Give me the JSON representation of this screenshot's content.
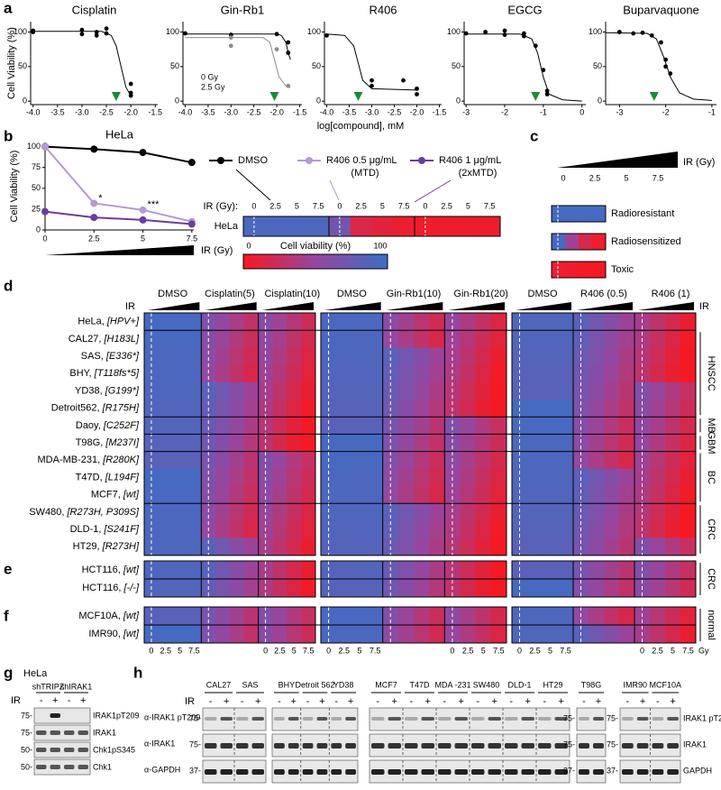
{
  "chart_data": [
    {
      "type": "scatter",
      "title": "Cisplatin",
      "xlim": [
        -4.05,
        -1.45
      ],
      "ylim": [
        -5,
        115
      ],
      "xticks": [
        {
          "value": -4,
          "label": "-4.0"
        },
        -3.5,
        {
          "value": -3,
          "label": "-3.0"
        },
        -2.5,
        {
          "value": -2,
          "label": "-2.0"
        },
        -1.5
      ],
      "yticks": [
        0,
        50,
        100
      ],
      "series": [
        {
          "color": "#000000",
          "x": [
            -4,
            -4,
            -3,
            -3,
            -2.7,
            -2.7,
            -2.5,
            -2.5,
            -2,
            -2,
            -2
          ],
          "y": [
            100,
            102,
            97,
            103,
            100,
            95,
            105,
            98,
            25,
            12,
            8
          ]
        }
      ],
      "fits": [
        {
          "color": "#000000",
          "x": [
            -4,
            -2.6,
            -2.4,
            -2.3,
            -2.2,
            -2.1,
            -2.0
          ],
          "y": [
            101,
            101,
            95,
            80,
            50,
            20,
            8
          ]
        }
      ],
      "arrow_x": -2.3
    },
    {
      "type": "scatter",
      "title": "Gin-Rb1",
      "xlim": [
        -4.05,
        -1.45
      ],
      "ylim": [
        -5,
        115
      ],
      "xticks": [
        {
          "value": -4,
          "label": "-4.0"
        },
        -3.5,
        {
          "value": -3,
          "label": "-3.0"
        },
        -2.5,
        {
          "value": -2,
          "label": "-2.0"
        },
        -1.5
      ],
      "yticks": [
        0,
        50,
        100
      ],
      "series": [
        {
          "color": "#000000",
          "x": [
            -4,
            -3,
            -2,
            -1.75,
            -1.75
          ],
          "y": [
            98,
            96,
            97,
            85,
            70
          ]
        },
        {
          "color": "#8c8c8c",
          "x": [
            -3,
            -3,
            -2,
            -1.75
          ],
          "y": [
            92,
            80,
            75,
            22
          ]
        }
      ],
      "fits": [
        {
          "color": "#000000",
          "x": [
            -4,
            -2,
            -1.9,
            -1.8,
            -1.75,
            -1.7
          ],
          "y": [
            97,
            97,
            95,
            85,
            70,
            60
          ]
        },
        {
          "color": "#8c8c8c",
          "x": [
            -4,
            -2.3,
            -2.15,
            -2.05,
            -1.95,
            -1.8,
            -1.7
          ],
          "y": [
            92,
            92,
            85,
            60,
            35,
            22,
            20
          ]
        }
      ],
      "notes": [
        "0 Gy",
        "2.5 Gy"
      ],
      "arrow_x": -2.05
    },
    {
      "type": "scatter",
      "title": "R406",
      "xlim": [
        -4.05,
        -1.45
      ],
      "ylim": [
        -5,
        115
      ],
      "xticks": [
        {
          "value": -4,
          "label": "-4.0"
        },
        -3.5,
        {
          "value": -3,
          "label": "-3.0"
        },
        -2.5,
        {
          "value": -2,
          "label": "-2.0"
        },
        -1.5
      ],
      "yticks": [
        0,
        50,
        100
      ],
      "series": [
        {
          "color": "#000000",
          "x": [
            -4,
            -3,
            -3,
            -2.3,
            -2,
            -2
          ],
          "y": [
            95,
            30,
            22,
            30,
            18,
            10
          ]
        }
      ],
      "fits": [
        {
          "color": "#000000",
          "x": [
            -4,
            -3.6,
            -3.4,
            -3.3,
            -3.2,
            -3.0,
            -2.0
          ],
          "y": [
            97,
            95,
            80,
            55,
            30,
            18,
            16
          ]
        }
      ],
      "arrow_x": -3.3
    },
    {
      "type": "scatter",
      "title": "EGCG",
      "xlim": [
        -3.05,
        0.1
      ],
      "ylim": [
        -5,
        115
      ],
      "xticks": [
        -3,
        -2,
        -1,
        0
      ],
      "yticks": [
        0,
        50,
        100
      ],
      "series": [
        {
          "color": "#000000",
          "x": [
            -3,
            -2.5,
            -2,
            -2,
            -1.5,
            -1.5,
            -1.2,
            -1,
            -0.9,
            -0.9
          ],
          "y": [
            98,
            100,
            102,
            96,
            98,
            94,
            80,
            45,
            15,
            10
          ]
        }
      ],
      "fits": [
        {
          "color": "#000000",
          "x": [
            -3,
            -1.6,
            -1.3,
            -1.15,
            -1.0,
            -0.85,
            -0.5,
            0
          ],
          "y": [
            97,
            97,
            90,
            70,
            35,
            10,
            2,
            0
          ]
        }
      ],
      "arrow_x": -1.2
    },
    {
      "type": "scatter",
      "title": "Buparvaquone",
      "xlim": [
        -3.3,
        -0.9
      ],
      "ylim": [
        -5,
        115
      ],
      "xticks": [
        -3,
        -2,
        -1
      ],
      "yticks": [
        0,
        50,
        100
      ],
      "series": [
        {
          "color": "#000000",
          "x": [
            -3,
            -2.7,
            -2.5,
            -2.3,
            -2.1,
            -2,
            -2,
            -1.9
          ],
          "y": [
            100,
            98,
            99,
            95,
            85,
            60,
            50,
            40
          ]
        }
      ],
      "fits": [
        {
          "color": "#000000",
          "x": [
            -3.3,
            -2.4,
            -2.2,
            -2.05,
            -1.9,
            -1.7,
            -1.4,
            -1
          ],
          "y": [
            99,
            98,
            90,
            65,
            35,
            12,
            3,
            1
          ]
        }
      ],
      "arrow_x": -2.25
    },
    {
      "type": "line",
      "title": "HeLa",
      "xlabel": "IR (Gy)",
      "ylabel": "Cell Viability (%)",
      "x": [
        0,
        2.5,
        5,
        7.5
      ],
      "xlim": [
        0,
        7.6
      ],
      "ylim": [
        0,
        105
      ],
      "xticks": [
        0,
        2.5,
        5,
        7.5
      ],
      "yticks": [
        0,
        25,
        50,
        75,
        100
      ],
      "series": [
        {
          "name": "DMSO",
          "color": "#000000",
          "values": [
            100,
            97,
            93,
            81
          ]
        },
        {
          "name": "R406 0.5 μg/mL",
          "note": "(MTD)",
          "color": "#b39ad4",
          "values": [
            100,
            32,
            24,
            10
          ]
        },
        {
          "name": "R406 1 μg/mL",
          "note": "(2xMTD)",
          "color": "#6a3d9a",
          "values": [
            22,
            15,
            12,
            7
          ]
        }
      ],
      "annotations": [
        "*",
        "***"
      ]
    }
  ],
  "figure": {
    "panel_labels": [
      "a",
      "b",
      "c",
      "d",
      "e",
      "f",
      "g",
      "h"
    ],
    "a": {
      "xlabel": "log[compound], mM",
      "ylabel": "Cell Viability (%)"
    },
    "b_map": {
      "ir_label": "IR (Gy):",
      "ticks": [
        0,
        2.5,
        5,
        7.5
      ],
      "row": "HeLa",
      "colorbar_title": "Cell viability (%)",
      "colorbar_ticks": [
        0,
        100
      ]
    },
    "c": {
      "axis": "IR (Gy)",
      "ticks": [
        0,
        2.5,
        5,
        7.5
      ],
      "legend": [
        "Radioresistant",
        "Radiosensitized",
        "Toxic"
      ]
    },
    "d": {
      "ir": "IR",
      "groups": [
        "DMSO",
        "Cisplatin(5)",
        "Cisplatin(10)",
        "DMSO",
        "Gin-Rb1(10)",
        "Gin-Rb1(20)",
        "DMSO",
        "R406 (0.5)",
        "R406 (1)"
      ],
      "rows": [
        {
          "name": "HeLa,",
          "mutation": "[HPV+]"
        },
        {
          "name": "CAL27,",
          "mutation": "[H183L]"
        },
        {
          "name": "SAS,",
          "mutation": "[E336*]"
        },
        {
          "name": "BHY,",
          "mutation": "[T118fs*5]"
        },
        {
          "name": "YD38,",
          "mutation": "[G199*]"
        },
        {
          "name": "Detroit562,",
          "mutation": "[R175H]"
        },
        {
          "name": "Daoy,",
          "mutation": "[C252F]"
        },
        {
          "name": "T98G,",
          "mutation": "[M237I]"
        },
        {
          "name": "MDA-MB-231,",
          "mutation": "[R280K]"
        },
        {
          "name": "T47D,",
          "mutation": "[L194F]"
        },
        {
          "name": "MCF7,",
          "mutation": "[wt]"
        },
        {
          "name": "SW480,",
          "mutation": "[R273H, P309S]"
        },
        {
          "name": "DLD-1,",
          "mutation": "[S241F]"
        },
        {
          "name": "HT29,",
          "mutation": "[R273H]"
        }
      ],
      "side": [
        "HNSCC",
        "MB",
        "GBM",
        "BC",
        "CRC"
      ]
    },
    "e": {
      "rows": [
        {
          "name": "HCT116,",
          "mutation": "[wt]"
        },
        {
          "name": "HCT116,",
          "mutation": "[-/-]"
        }
      ],
      "side": "CRC"
    },
    "f": {
      "rows": [
        {
          "name": "MCF10A,",
          "mutation": "[wt]"
        },
        {
          "name": "IMR90,",
          "mutation": "[wt]"
        }
      ],
      "side": "normal"
    },
    "gy_ticks": [
      0,
      2.5,
      5,
      7.5
    ],
    "gy_unit": "Gy",
    "g": {
      "cell": "HeLa",
      "groups": [
        "shTRIPZ",
        "shIRAK1"
      ],
      "ir": "IR",
      "signs": [
        "-",
        "+"
      ],
      "bands": [
        "IRAK1pT209",
        "IRAK1",
        "Chk1pS345",
        "Chk1"
      ],
      "mw": [
        "75-",
        "75-",
        "50-",
        "50-"
      ]
    },
    "h": {
      "samples": [
        "CAL27",
        "SAS",
        "BHY",
        "Detroit 562",
        "YD38",
        "MCF7",
        "T47D",
        "MDA -231",
        "SW480",
        "DLD-1",
        "HT29",
        "T98G",
        "IMR90",
        "MCF10A"
      ],
      "ir": "IR",
      "signs": [
        "-",
        "+"
      ],
      "left": [
        "α-IRAK1 pT209",
        "α-IRAK1",
        "α-GAPDH"
      ],
      "mw": [
        "75-",
        "75-",
        "37-"
      ],
      "right": [
        "IRAK1 pT209",
        "IRAK1",
        "GAPDH"
      ]
    }
  }
}
